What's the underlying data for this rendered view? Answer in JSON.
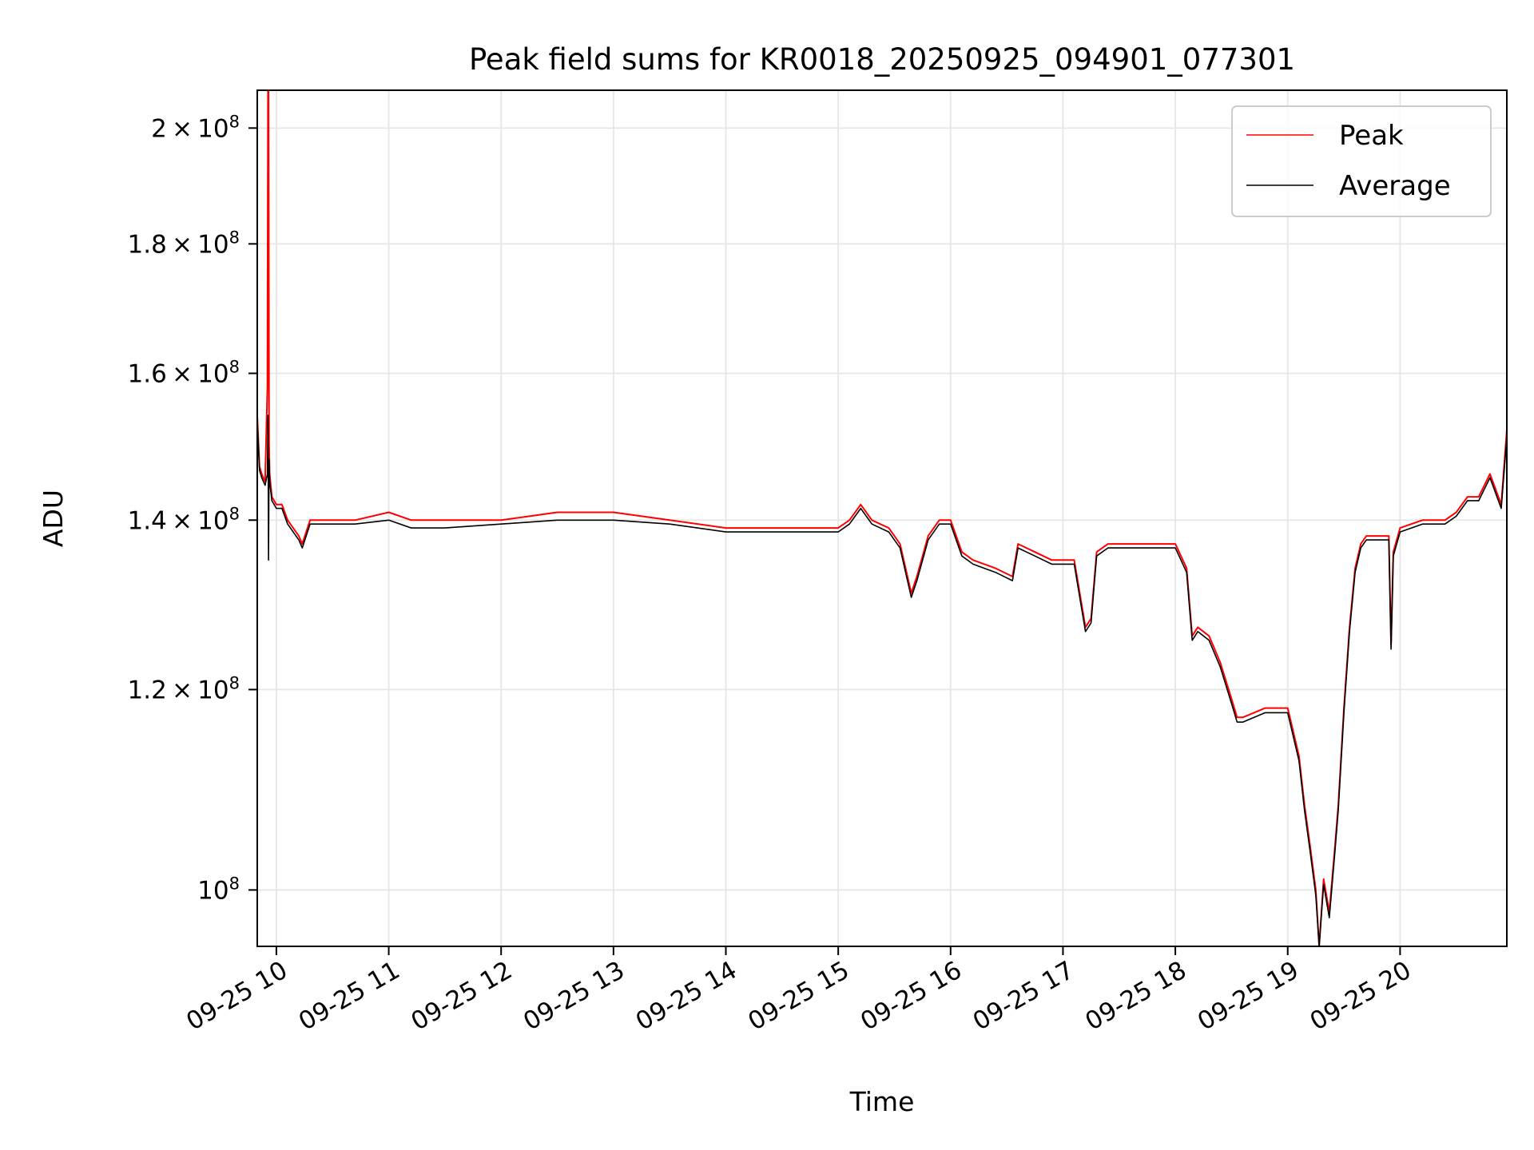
{
  "chart_data": {
    "type": "line",
    "title": "Peak field sums for KR0018_20250925_094901_077301",
    "xlabel": "Time",
    "ylabel": "ADU",
    "yscale": "log",
    "xlim": [
      9.83,
      20.95
    ],
    "ylim": [
      95000000,
      207000000
    ],
    "grid": true,
    "legend_position": "top-right",
    "x_ticks": [
      {
        "value": 10,
        "label": "09-25 10"
      },
      {
        "value": 11,
        "label": "09-25 11"
      },
      {
        "value": 12,
        "label": "09-25 12"
      },
      {
        "value": 13,
        "label": "09-25 13"
      },
      {
        "value": 14,
        "label": "09-25 14"
      },
      {
        "value": 15,
        "label": "09-25 15"
      },
      {
        "value": 16,
        "label": "09-25 16"
      },
      {
        "value": 17,
        "label": "09-25 17"
      },
      {
        "value": 18,
        "label": "09-25 18"
      },
      {
        "value": 19,
        "label": "09-25 19"
      },
      {
        "value": 20,
        "label": "09-25 20"
      }
    ],
    "y_ticks": [
      {
        "value": 100000000,
        "mantissa": "",
        "exponent": "8"
      },
      {
        "value": 120000000,
        "mantissa": "1.2",
        "exponent": "8"
      },
      {
        "value": 140000000,
        "mantissa": "1.4",
        "exponent": "8"
      },
      {
        "value": 160000000,
        "mantissa": "1.6",
        "exponent": "8"
      },
      {
        "value": 180000000,
        "mantissa": "1.8",
        "exponent": "8"
      },
      {
        "value": 200000000,
        "mantissa": "2",
        "exponent": "8"
      }
    ],
    "x_unit_note": "hours of day on 09-25",
    "series": [
      {
        "name": "Peak",
        "color": "#ff0000",
        "x": [
          9.83,
          9.85,
          9.87,
          9.9,
          9.92,
          9.925,
          9.93,
          9.935,
          9.94,
          9.96,
          10.0,
          10.05,
          10.1,
          10.2,
          10.23,
          10.3,
          10.5,
          10.7,
          11.0,
          11.2,
          11.5,
          12.0,
          12.5,
          13.0,
          13.5,
          14.0,
          14.5,
          14.9,
          15.0,
          15.1,
          15.2,
          15.3,
          15.45,
          15.55,
          15.65,
          15.7,
          15.8,
          15.9,
          16.0,
          16.1,
          16.2,
          16.4,
          16.55,
          16.6,
          16.75,
          16.9,
          17.0,
          17.1,
          17.2,
          17.25,
          17.3,
          17.4,
          17.6,
          17.8,
          18.0,
          18.1,
          18.15,
          18.2,
          18.3,
          18.4,
          18.5,
          18.55,
          18.6,
          18.8,
          19.0,
          19.1,
          19.15,
          19.2,
          19.25,
          19.28,
          19.32,
          19.37,
          19.42,
          19.45,
          19.5,
          19.55,
          19.6,
          19.65,
          19.7,
          19.8,
          19.9,
          19.92,
          19.94,
          20.0,
          20.2,
          20.4,
          20.5,
          20.6,
          20.7,
          20.8,
          20.85,
          20.9,
          20.95
        ],
        "y": [
          154000000,
          147000000,
          146000000,
          145000000,
          158000000,
          207000000,
          207000000,
          150000000,
          146000000,
          143000000,
          142000000,
          142000000,
          140000000,
          138000000,
          137000000,
          140000000,
          140000000,
          140000000,
          141000000,
          140000000,
          140000000,
          140000000,
          141000000,
          141000000,
          140000000,
          139000000,
          139000000,
          139000000,
          139000000,
          140000000,
          142000000,
          140000000,
          139000000,
          137000000,
          131000000,
          133000000,
          138000000,
          140000000,
          140000000,
          136000000,
          135000000,
          134000000,
          133000000,
          137000000,
          136000000,
          135000000,
          135000000,
          135000000,
          127000000,
          128000000,
          136000000,
          137000000,
          137000000,
          137000000,
          137000000,
          134000000,
          126000000,
          127000000,
          126000000,
          123000000,
          119000000,
          117000000,
          117000000,
          118000000,
          118000000,
          113000000,
          108000000,
          104000000,
          100000000,
          95000000,
          101000000,
          98000000,
          104000000,
          108000000,
          118000000,
          127000000,
          134000000,
          137000000,
          138000000,
          138000000,
          138000000,
          125000000,
          136000000,
          139000000,
          140000000,
          140000000,
          141000000,
          143000000,
          143000000,
          146000000,
          144000000,
          142000000,
          152000000
        ]
      },
      {
        "name": "Average",
        "color": "#000000",
        "x": [
          9.83,
          9.85,
          9.87,
          9.9,
          9.92,
          9.925,
          9.93,
          9.935,
          9.94,
          9.96,
          10.0,
          10.05,
          10.1,
          10.2,
          10.23,
          10.3,
          10.5,
          10.7,
          11.0,
          11.2,
          11.5,
          12.0,
          12.5,
          13.0,
          13.5,
          14.0,
          14.5,
          14.9,
          15.0,
          15.1,
          15.2,
          15.3,
          15.45,
          15.55,
          15.65,
          15.7,
          15.8,
          15.9,
          16.0,
          16.1,
          16.2,
          16.4,
          16.55,
          16.6,
          16.75,
          16.9,
          17.0,
          17.1,
          17.2,
          17.25,
          17.3,
          17.4,
          17.6,
          17.8,
          18.0,
          18.1,
          18.15,
          18.2,
          18.3,
          18.4,
          18.5,
          18.55,
          18.6,
          18.8,
          19.0,
          19.1,
          19.15,
          19.2,
          19.25,
          19.28,
          19.32,
          19.37,
          19.42,
          19.45,
          19.5,
          19.55,
          19.6,
          19.65,
          19.7,
          19.8,
          19.9,
          19.92,
          19.94,
          20.0,
          20.2,
          20.4,
          20.5,
          20.6,
          20.7,
          20.8,
          20.85,
          20.9,
          20.95
        ],
        "y": [
          153000000,
          146500000,
          145500000,
          144500000,
          146000000,
          154000000,
          135000000,
          148000000,
          145000000,
          142500000,
          141500000,
          141500000,
          139500000,
          137500000,
          136500000,
          139500000,
          139500000,
          139500000,
          140000000,
          139000000,
          139000000,
          139500000,
          140000000,
          140000000,
          139500000,
          138500000,
          138500000,
          138500000,
          138500000,
          139500000,
          141500000,
          139500000,
          138500000,
          136500000,
          130500000,
          132500000,
          137500000,
          139500000,
          139500000,
          135500000,
          134500000,
          133500000,
          132500000,
          136500000,
          135500000,
          134500000,
          134500000,
          134500000,
          126500000,
          127500000,
          135500000,
          136500000,
          136500000,
          136500000,
          136500000,
          133500000,
          125500000,
          126500000,
          125500000,
          122500000,
          118500000,
          116500000,
          116500000,
          117500000,
          117500000,
          112500000,
          107500000,
          103500000,
          99500000,
          95000000,
          100500000,
          97500000,
          103500000,
          107500000,
          117500000,
          126500000,
          133500000,
          136500000,
          137500000,
          137500000,
          137500000,
          124500000,
          135500000,
          138500000,
          139500000,
          139500000,
          140500000,
          142500000,
          142500000,
          145500000,
          143500000,
          141500000,
          151000000
        ]
      }
    ],
    "legend": [
      {
        "label": "Peak",
        "color": "#ff0000"
      },
      {
        "label": "Average",
        "color": "#000000"
      }
    ]
  }
}
